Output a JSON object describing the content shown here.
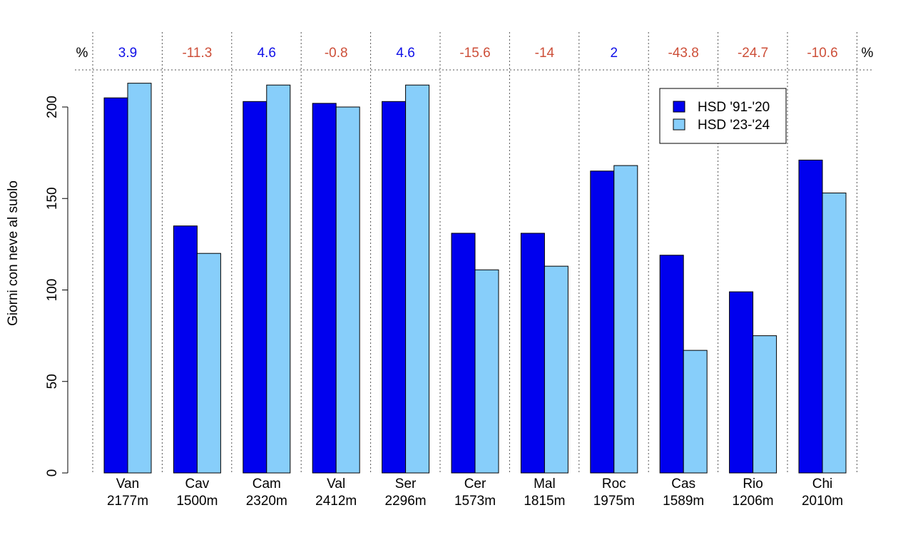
{
  "chart_data": {
    "type": "bar",
    "ylabel": "Giorni con neve al suolo",
    "ylim": [
      0,
      220
    ],
    "yticks": [
      0,
      50,
      100,
      150,
      200
    ],
    "grid": "dotted vertical separators between groups; dotted horizontal line under percent row",
    "legend_position": "top-right",
    "percent_symbol": "%",
    "categories": [
      {
        "name": "Van",
        "elevation": "2177m"
      },
      {
        "name": "Cav",
        "elevation": "1500m"
      },
      {
        "name": "Cam",
        "elevation": "2320m"
      },
      {
        "name": "Val",
        "elevation": "2412m"
      },
      {
        "name": "Ser",
        "elevation": "2296m"
      },
      {
        "name": "Cer",
        "elevation": "1573m"
      },
      {
        "name": "Mal",
        "elevation": "1815m"
      },
      {
        "name": "Roc",
        "elevation": "1975m"
      },
      {
        "name": "Cas",
        "elevation": "1589m"
      },
      {
        "name": "Rio",
        "elevation": "1206m"
      },
      {
        "name": "Chi",
        "elevation": "2010m"
      }
    ],
    "series": [
      {
        "name": "HSD '91-'20",
        "color": "#0000ee",
        "values": [
          205,
          135,
          203,
          202,
          203,
          131,
          131,
          165,
          119,
          99,
          171
        ]
      },
      {
        "name": "HSD '23-'24",
        "color": "#87cefa",
        "values": [
          213,
          120,
          212,
          200,
          212,
          111,
          113,
          168,
          67,
          75,
          153
        ]
      }
    ],
    "percent_change": [
      "3.9",
      "-11.3",
      "4.6",
      "-0.8",
      "4.6",
      "-15.6",
      "-14",
      "2",
      "-43.8",
      "-24.7",
      "-10.6"
    ],
    "percent_colors": {
      "positive": "#1010e8",
      "negative": "#cd4f39"
    }
  }
}
